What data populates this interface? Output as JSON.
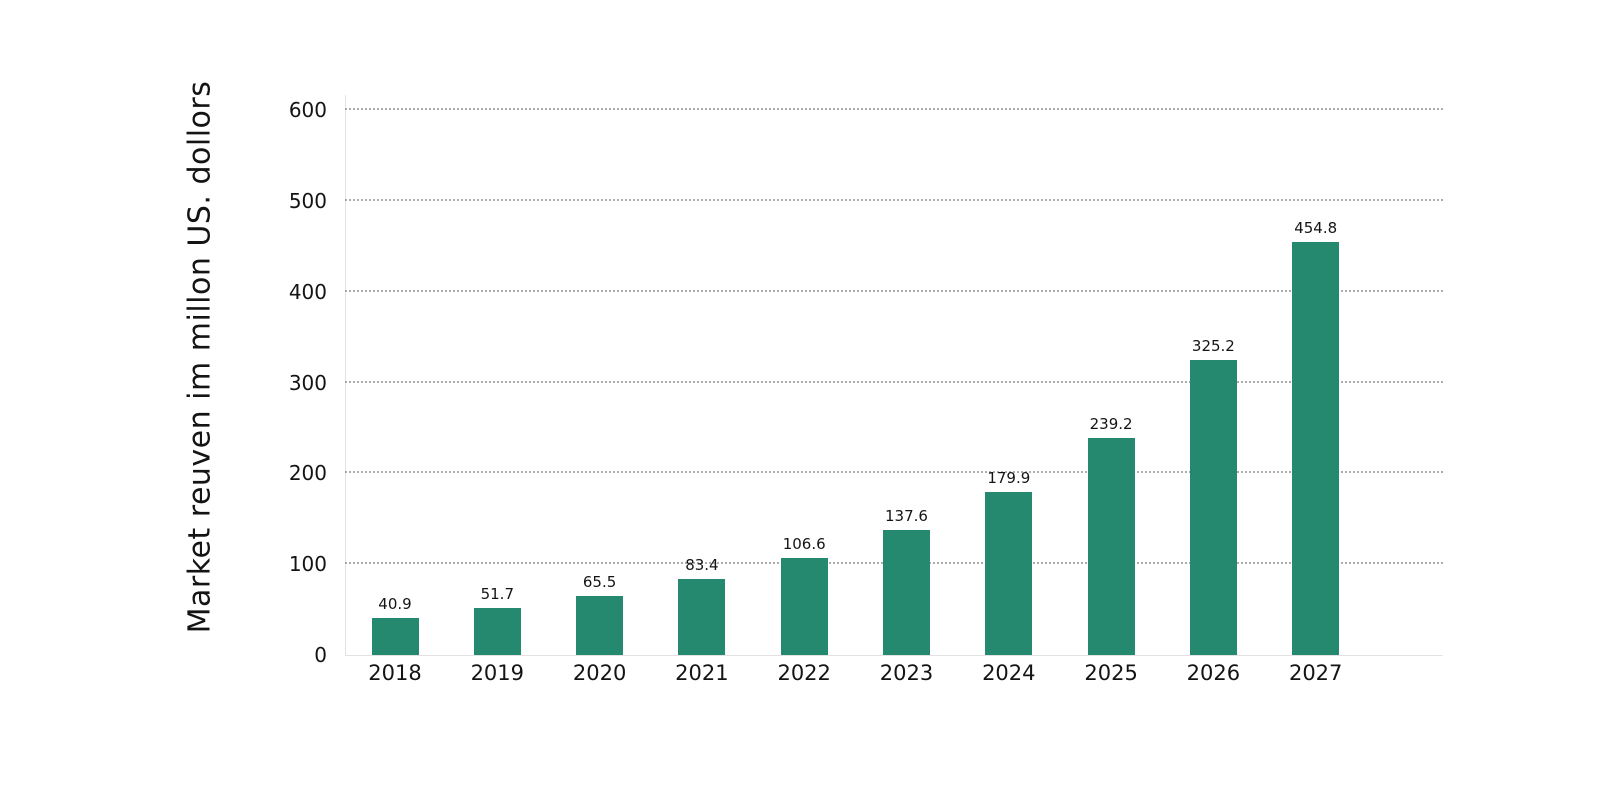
{
  "chart_data": {
    "type": "bar",
    "title": "",
    "xlabel": "",
    "ylabel": "Market reuven im millon US. dollors",
    "categories": [
      "2018",
      "2019",
      "2020",
      "2021",
      "2022",
      "2023",
      "2024",
      "2025",
      "2026",
      "2027"
    ],
    "values": [
      40.9,
      51.7,
      65.5,
      83.4,
      106.6,
      137.6,
      179.9,
      239.2,
      325.2,
      454.8
    ],
    "ylim": [
      0,
      600
    ],
    "y_ticks": [
      0,
      100,
      200,
      300,
      400,
      500,
      600
    ],
    "grid": "horizontal-dotted",
    "legend": "none",
    "bar_color": "#24896F"
  },
  "colors": {
    "bar": "#24896F",
    "gridline": "#ababab",
    "axis_line": "#e2e2e2",
    "text": "#141414",
    "background": "#ffffff"
  }
}
